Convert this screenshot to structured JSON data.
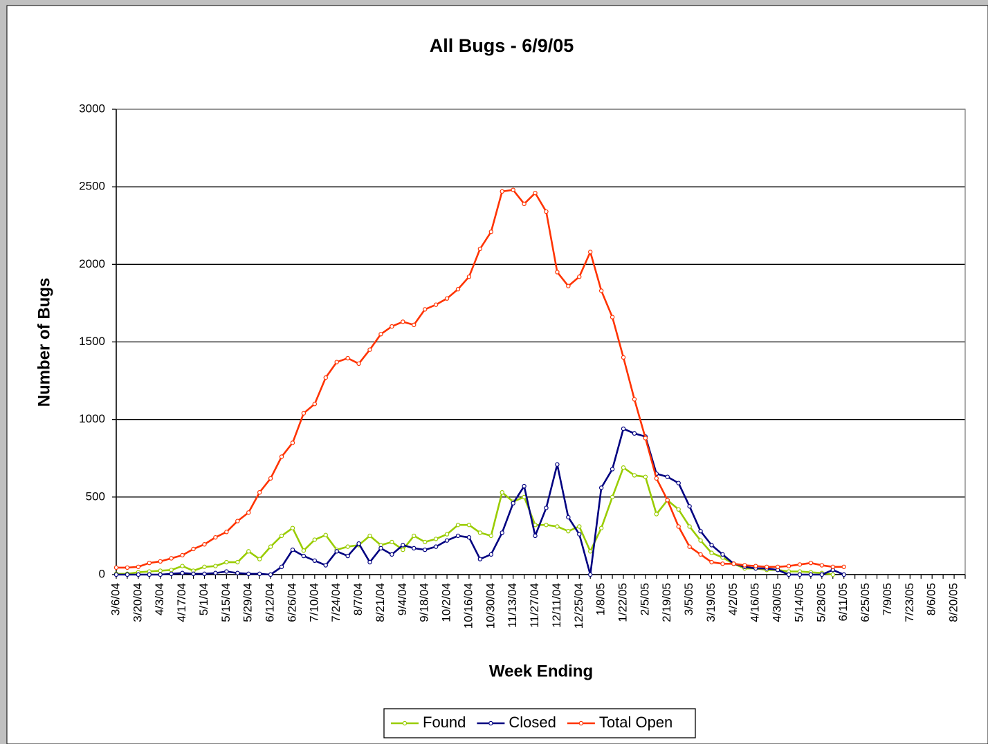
{
  "chart_data": {
    "type": "line",
    "title": "All Bugs - 6/9/05",
    "x_label": "Week Ending",
    "y_label": "Number of Bugs",
    "categories": [
      "3/6/04",
      null,
      "3/20/04",
      null,
      "4/3/04",
      null,
      "4/17/04",
      null,
      "5/1/04",
      null,
      "5/15/04",
      null,
      "5/29/04",
      null,
      "6/12/04",
      null,
      "6/26/04",
      null,
      "7/10/04",
      null,
      "7/24/04",
      null,
      "8/7/04",
      null,
      "8/21/04",
      null,
      "9/4/04",
      null,
      "9/18/04",
      null,
      "10/2/04",
      null,
      "10/16/04",
      null,
      "10/30/04",
      null,
      "11/13/04",
      null,
      "11/27/04",
      null,
      "12/11/04",
      null,
      "12/25/04",
      null,
      "1/8/05",
      null,
      "1/22/05",
      null,
      "2/5/05",
      null,
      "2/19/05",
      null,
      "3/5/05",
      null,
      "3/19/05",
      null,
      "4/2/05",
      null,
      "4/16/05",
      null,
      "4/30/05",
      null,
      "5/14/05",
      null,
      "5/28/05",
      null,
      "6/11/05",
      null,
      "6/25/05",
      null,
      "7/9/05",
      null,
      "7/23/05",
      null,
      "8/6/05",
      null,
      "8/20/05",
      null
    ],
    "series": [
      {
        "name": "Found",
        "color": "#99cc00",
        "values": [
          5,
          5,
          15,
          20,
          25,
          30,
          55,
          25,
          50,
          55,
          80,
          80,
          150,
          100,
          180,
          250,
          300,
          155,
          225,
          255,
          160,
          180,
          190,
          250,
          190,
          210,
          160,
          250,
          210,
          230,
          260,
          320,
          320,
          270,
          250,
          530,
          470,
          500,
          320,
          320,
          310,
          280,
          310,
          150,
          300,
          500,
          690,
          640,
          630,
          390,
          480,
          420,
          310,
          220,
          140,
          110,
          70,
          40,
          40,
          30,
          30,
          20,
          20,
          15,
          10,
          0,
          null,
          null,
          null,
          null,
          null,
          null,
          null,
          null,
          null,
          null,
          null,
          null
        ]
      },
      {
        "name": "Closed",
        "color": "#000080",
        "values": [
          0,
          0,
          0,
          0,
          0,
          5,
          10,
          5,
          5,
          10,
          20,
          10,
          5,
          5,
          0,
          50,
          160,
          120,
          90,
          60,
          150,
          120,
          200,
          80,
          170,
          130,
          190,
          170,
          160,
          180,
          220,
          250,
          240,
          100,
          130,
          270,
          460,
          570,
          250,
          430,
          710,
          370,
          260,
          0,
          560,
          680,
          940,
          910,
          890,
          650,
          630,
          590,
          440,
          280,
          190,
          130,
          70,
          50,
          40,
          40,
          30,
          0,
          0,
          0,
          0,
          30,
          0,
          null,
          null,
          null,
          null,
          null,
          null,
          null,
          null,
          null,
          null,
          null
        ]
      },
      {
        "name": "Total Open",
        "color": "#ff3300",
        "values": [
          45,
          45,
          50,
          75,
          85,
          105,
          125,
          165,
          195,
          240,
          275,
          345,
          400,
          530,
          620,
          760,
          850,
          1040,
          1100,
          1270,
          1370,
          1395,
          1360,
          1450,
          1550,
          1600,
          1630,
          1610,
          1710,
          1740,
          1780,
          1840,
          1920,
          2100,
          2210,
          2470,
          2480,
          2390,
          2460,
          2340,
          1950,
          1860,
          1920,
          2080,
          1830,
          1660,
          1400,
          1130,
          880,
          620,
          480,
          310,
          180,
          130,
          80,
          70,
          70,
          60,
          55,
          50,
          50,
          55,
          65,
          75,
          60,
          50,
          50,
          null,
          null,
          null,
          null,
          null,
          null,
          null,
          null,
          null,
          null,
          null
        ]
      }
    ],
    "ylim": [
      0,
      3000
    ],
    "yticks": [
      0,
      500,
      1000,
      1500,
      2000,
      2500,
      3000
    ],
    "grid": true,
    "legend": "bottom"
  }
}
